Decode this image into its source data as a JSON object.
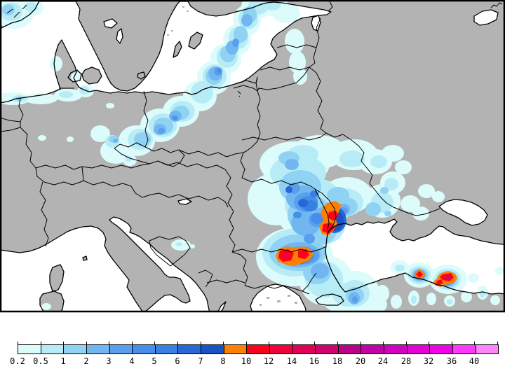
{
  "map": {
    "land_color": "#B3B3B3",
    "sea_color": "#FFFFFF",
    "coastline_color": "#000000",
    "frame_color": "#000000",
    "background_color": "#FFFFFF"
  },
  "legend": {
    "tick_labels": [
      "0.2",
      "0.5",
      "1",
      "2",
      "3",
      "4",
      "5",
      "6",
      "7",
      "8",
      "10",
      "12",
      "14",
      "16",
      "18",
      "20",
      "24",
      "28",
      "32",
      "36",
      "40"
    ],
    "segments": [
      {
        "from": "0.2",
        "color": "#DCFBFB"
      },
      {
        "from": "0.5",
        "color": "#B7ECF6"
      },
      {
        "from": "1",
        "color": "#8FD2F4"
      },
      {
        "from": "2",
        "color": "#72B6F1"
      },
      {
        "from": "3",
        "color": "#58A0EE"
      },
      {
        "from": "4",
        "color": "#468EE9"
      },
      {
        "from": "5",
        "color": "#377FE2"
      },
      {
        "from": "6",
        "color": "#2767D6"
      },
      {
        "from": "7",
        "color": "#1A52C4"
      },
      {
        "from": "8",
        "color": "#FE8003"
      },
      {
        "from": "10",
        "color": "#FB0318"
      },
      {
        "from": "12",
        "color": "#F0023A"
      },
      {
        "from": "14",
        "color": "#E10256"
      },
      {
        "from": "16",
        "color": "#D0026E"
      },
      {
        "from": "18",
        "color": "#B80288"
      },
      {
        "from": "20",
        "color": "#C203A6"
      },
      {
        "from": "24",
        "color": "#D203BE"
      },
      {
        "from": "28",
        "color": "#E203D4"
      },
      {
        "from": "32",
        "color": "#EE03E6"
      },
      {
        "from": "36",
        "color": "#FB3BF8"
      },
      {
        "from": "40",
        "color": "#FC85F9"
      }
    ]
  },
  "precipitation_areas": [
    {
      "area": "southwest-norway-coast",
      "max_band": "1-2"
    },
    {
      "area": "north-german-coast-and-denmark",
      "max_band": "1-2"
    },
    {
      "area": "poland-to-baltic-states-band",
      "max_band": "4-5"
    },
    {
      "area": "bosnia-small-patch",
      "max_band": "0.5-1"
    },
    {
      "area": "ukraine-moldova-romania-system",
      "max_band": "12-14"
    },
    {
      "area": "southwest-black-sea-bosphorus",
      "max_band": "3-4"
    },
    {
      "area": "turkey-black-sea-coast-cells",
      "max_band": "14-16"
    }
  ]
}
